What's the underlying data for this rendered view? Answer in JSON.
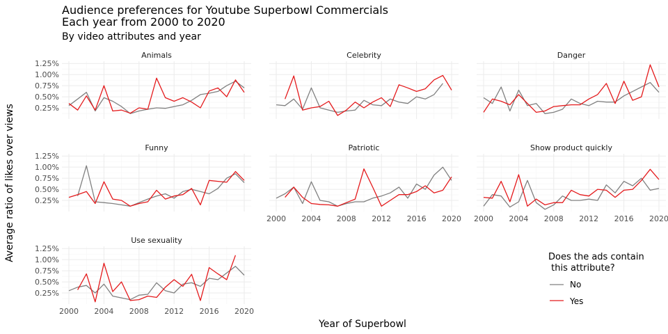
{
  "chart_data": {
    "type": "line",
    "title_line1": "Audience preferences for Youtube Superbowl Commercials",
    "title_line2": "Each year from 2000 to 2020",
    "subtitle": "By video attributes and year",
    "xlabel": "Year of Superbowl",
    "ylabel": "Average ratio of likes over views",
    "xlim": [
      2000,
      2020
    ],
    "ylim": [
      0,
      1.3
    ],
    "x_ticks": [
      2000,
      2004,
      2008,
      2012,
      2016,
      2020
    ],
    "y_ticks": [
      0.25,
      0.5,
      0.75,
      1.0,
      1.25
    ],
    "y_tick_labels": [
      "0.25%",
      "0.50%",
      "0.75%",
      "1.00%",
      "1.25%"
    ],
    "legend": {
      "title_line1": "Does the ads contain",
      "title_line2": " this attribute?",
      "entries": [
        {
          "label": "No",
          "color": "#808080"
        },
        {
          "label": "Yes",
          "color": "#e41a1c"
        }
      ]
    },
    "series_colors": {
      "no": "#808080",
      "yes": "#e41a1c"
    },
    "panels": [
      {
        "name": "Animals",
        "no": [
          [
            2000,
            0.3
          ],
          [
            2001,
            0.45
          ],
          [
            2002,
            0.6
          ],
          [
            2003,
            0.18
          ],
          [
            2004,
            0.48
          ],
          [
            2005,
            0.4
          ],
          [
            2006,
            0.28
          ],
          [
            2007,
            0.12
          ],
          [
            2008,
            0.18
          ],
          [
            2009,
            0.22
          ],
          [
            2010,
            0.25
          ],
          [
            2011,
            0.24
          ],
          [
            2012,
            0.28
          ],
          [
            2013,
            0.32
          ],
          [
            2014,
            0.42
          ],
          [
            2015,
            0.55
          ],
          [
            2016,
            0.58
          ],
          [
            2017,
            0.62
          ],
          [
            2018,
            0.75
          ],
          [
            2019,
            0.85
          ],
          [
            2020,
            0.7
          ]
        ],
        "yes": [
          [
            2000,
            0.35
          ],
          [
            2001,
            0.2
          ],
          [
            2002,
            0.52
          ],
          [
            2003,
            0.2
          ],
          [
            2004,
            0.75
          ],
          [
            2005,
            0.18
          ],
          [
            2006,
            0.2
          ],
          [
            2007,
            0.13
          ],
          [
            2008,
            0.25
          ],
          [
            2009,
            0.22
          ],
          [
            2010,
            0.92
          ],
          [
            2011,
            0.48
          ],
          [
            2012,
            0.4
          ],
          [
            2013,
            0.48
          ],
          [
            2014,
            0.38
          ],
          [
            2015,
            0.25
          ],
          [
            2016,
            0.63
          ],
          [
            2017,
            0.7
          ],
          [
            2018,
            0.5
          ],
          [
            2019,
            0.88
          ],
          [
            2020,
            0.6
          ]
        ]
      },
      {
        "name": "Celebrity",
        "no": [
          [
            2000,
            0.32
          ],
          [
            2001,
            0.3
          ],
          [
            2002,
            0.45
          ],
          [
            2003,
            0.22
          ],
          [
            2004,
            0.7
          ],
          [
            2005,
            0.25
          ],
          [
            2006,
            0.2
          ],
          [
            2007,
            0.15
          ],
          [
            2008,
            0.18
          ],
          [
            2009,
            0.2
          ],
          [
            2010,
            0.42
          ],
          [
            2011,
            0.32
          ],
          [
            2012,
            0.3
          ],
          [
            2013,
            0.45
          ],
          [
            2014,
            0.38
          ],
          [
            2015,
            0.35
          ],
          [
            2016,
            0.5
          ],
          [
            2017,
            0.45
          ],
          [
            2018,
            0.55
          ],
          [
            2019,
            0.8
          ]
        ],
        "yes": [
          [
            2001,
            0.45
          ],
          [
            2002,
            0.97
          ],
          [
            2003,
            0.2
          ],
          [
            2004,
            0.25
          ],
          [
            2005,
            0.28
          ],
          [
            2006,
            0.4
          ],
          [
            2007,
            0.08
          ],
          [
            2008,
            0.2
          ],
          [
            2009,
            0.38
          ],
          [
            2010,
            0.25
          ],
          [
            2011,
            0.38
          ],
          [
            2012,
            0.48
          ],
          [
            2013,
            0.28
          ],
          [
            2014,
            0.77
          ],
          [
            2015,
            0.7
          ],
          [
            2016,
            0.62
          ],
          [
            2017,
            0.68
          ],
          [
            2018,
            0.88
          ],
          [
            2019,
            0.98
          ],
          [
            2020,
            0.65
          ]
        ]
      },
      {
        "name": "Danger",
        "no": [
          [
            2000,
            0.48
          ],
          [
            2001,
            0.35
          ],
          [
            2002,
            0.72
          ],
          [
            2003,
            0.18
          ],
          [
            2004,
            0.65
          ],
          [
            2005,
            0.3
          ],
          [
            2006,
            0.35
          ],
          [
            2007,
            0.12
          ],
          [
            2008,
            0.15
          ],
          [
            2009,
            0.22
          ],
          [
            2010,
            0.45
          ],
          [
            2011,
            0.35
          ],
          [
            2012,
            0.3
          ],
          [
            2013,
            0.4
          ],
          [
            2014,
            0.38
          ],
          [
            2015,
            0.38
          ],
          [
            2016,
            0.52
          ],
          [
            2017,
            0.62
          ],
          [
            2018,
            0.72
          ],
          [
            2019,
            0.82
          ],
          [
            2020,
            0.6
          ]
        ],
        "yes": [
          [
            2000,
            0.15
          ],
          [
            2001,
            0.45
          ],
          [
            2002,
            0.4
          ],
          [
            2003,
            0.32
          ],
          [
            2004,
            0.55
          ],
          [
            2005,
            0.35
          ],
          [
            2006,
            0.15
          ],
          [
            2007,
            0.18
          ],
          [
            2008,
            0.28
          ],
          [
            2009,
            0.3
          ],
          [
            2010,
            0.32
          ],
          [
            2011,
            0.32
          ],
          [
            2012,
            0.45
          ],
          [
            2013,
            0.55
          ],
          [
            2014,
            0.8
          ],
          [
            2015,
            0.35
          ],
          [
            2016,
            0.85
          ],
          [
            2017,
            0.42
          ],
          [
            2018,
            0.5
          ],
          [
            2019,
            1.22
          ],
          [
            2020,
            0.72
          ]
        ]
      },
      {
        "name": "Funny",
        "no": [
          [
            2001,
            0.35
          ],
          [
            2002,
            1.03
          ],
          [
            2003,
            0.22
          ],
          [
            2004,
            0.2
          ],
          [
            2005,
            0.18
          ],
          [
            2006,
            0.15
          ],
          [
            2007,
            0.12
          ],
          [
            2008,
            0.2
          ],
          [
            2009,
            0.28
          ],
          [
            2010,
            0.35
          ],
          [
            2011,
            0.4
          ],
          [
            2012,
            0.3
          ],
          [
            2013,
            0.45
          ],
          [
            2014,
            0.5
          ],
          [
            2015,
            0.45
          ],
          [
            2016,
            0.4
          ],
          [
            2017,
            0.52
          ],
          [
            2018,
            0.75
          ],
          [
            2019,
            0.85
          ],
          [
            2020,
            0.65
          ]
        ],
        "yes": [
          [
            2000,
            0.32
          ],
          [
            2001,
            0.38
          ],
          [
            2002,
            0.45
          ],
          [
            2003,
            0.18
          ],
          [
            2004,
            0.67
          ],
          [
            2005,
            0.28
          ],
          [
            2006,
            0.25
          ],
          [
            2007,
            0.12
          ],
          [
            2008,
            0.18
          ],
          [
            2009,
            0.22
          ],
          [
            2010,
            0.48
          ],
          [
            2011,
            0.28
          ],
          [
            2012,
            0.35
          ],
          [
            2013,
            0.38
          ],
          [
            2014,
            0.52
          ],
          [
            2015,
            0.15
          ],
          [
            2016,
            0.7
          ],
          [
            2017,
            0.68
          ],
          [
            2018,
            0.66
          ],
          [
            2019,
            0.9
          ],
          [
            2020,
            0.7
          ]
        ]
      },
      {
        "name": "Patriotic",
        "no": [
          [
            2000,
            0.3
          ],
          [
            2001,
            0.4
          ],
          [
            2002,
            0.55
          ],
          [
            2003,
            0.18
          ],
          [
            2004,
            0.67
          ],
          [
            2005,
            0.25
          ],
          [
            2006,
            0.22
          ],
          [
            2007,
            0.12
          ],
          [
            2008,
            0.18
          ],
          [
            2009,
            0.22
          ],
          [
            2010,
            0.22
          ],
          [
            2011,
            0.3
          ],
          [
            2012,
            0.35
          ],
          [
            2013,
            0.42
          ],
          [
            2014,
            0.55
          ],
          [
            2015,
            0.3
          ],
          [
            2016,
            0.62
          ],
          [
            2017,
            0.5
          ],
          [
            2018,
            0.82
          ],
          [
            2019,
            1.0
          ],
          [
            2020,
            0.7
          ]
        ],
        "yes": [
          [
            2001,
            0.32
          ],
          [
            2002,
            0.55
          ],
          [
            2003,
            0.32
          ],
          [
            2004,
            0.18
          ],
          [
            2005,
            0.16
          ],
          [
            2006,
            0.15
          ],
          [
            2007,
            0.12
          ],
          [
            2008,
            0.2
          ],
          [
            2009,
            0.28
          ],
          [
            2010,
            0.96
          ],
          [
            2011,
            0.55
          ],
          [
            2012,
            0.12
          ],
          [
            2013,
            0.25
          ],
          [
            2014,
            0.38
          ],
          [
            2015,
            0.38
          ],
          [
            2016,
            0.45
          ],
          [
            2017,
            0.58
          ],
          [
            2018,
            0.42
          ],
          [
            2019,
            0.48
          ],
          [
            2020,
            0.78
          ]
        ]
      },
      {
        "name": "Show product quickly",
        "no": [
          [
            2000,
            0.12
          ],
          [
            2001,
            0.38
          ],
          [
            2002,
            0.35
          ],
          [
            2003,
            0.1
          ],
          [
            2004,
            0.22
          ],
          [
            2005,
            0.7
          ],
          [
            2006,
            0.2
          ],
          [
            2007,
            0.05
          ],
          [
            2008,
            0.15
          ],
          [
            2009,
            0.35
          ],
          [
            2010,
            0.25
          ],
          [
            2011,
            0.25
          ],
          [
            2012,
            0.28
          ],
          [
            2013,
            0.25
          ],
          [
            2014,
            0.6
          ],
          [
            2015,
            0.42
          ],
          [
            2016,
            0.68
          ],
          [
            2017,
            0.58
          ],
          [
            2018,
            0.75
          ],
          [
            2019,
            0.48
          ],
          [
            2020,
            0.52
          ]
        ],
        "yes": [
          [
            2000,
            0.32
          ],
          [
            2001,
            0.3
          ],
          [
            2002,
            0.68
          ],
          [
            2003,
            0.22
          ],
          [
            2004,
            0.83
          ],
          [
            2005,
            0.12
          ],
          [
            2006,
            0.28
          ],
          [
            2007,
            0.15
          ],
          [
            2008,
            0.2
          ],
          [
            2009,
            0.2
          ],
          [
            2010,
            0.48
          ],
          [
            2011,
            0.38
          ],
          [
            2012,
            0.35
          ],
          [
            2013,
            0.5
          ],
          [
            2014,
            0.48
          ],
          [
            2015,
            0.32
          ],
          [
            2016,
            0.48
          ],
          [
            2017,
            0.5
          ],
          [
            2018,
            0.7
          ],
          [
            2019,
            0.95
          ],
          [
            2020,
            0.72
          ]
        ]
      },
      {
        "name": "Use sexuality",
        "no": [
          [
            2000,
            0.3
          ],
          [
            2001,
            0.38
          ],
          [
            2002,
            0.42
          ],
          [
            2003,
            0.25
          ],
          [
            2004,
            0.45
          ],
          [
            2005,
            0.18
          ],
          [
            2006,
            0.14
          ],
          [
            2007,
            0.1
          ],
          [
            2008,
            0.2
          ],
          [
            2009,
            0.22
          ],
          [
            2010,
            0.48
          ],
          [
            2011,
            0.3
          ],
          [
            2012,
            0.25
          ],
          [
            2013,
            0.45
          ],
          [
            2014,
            0.48
          ],
          [
            2015,
            0.4
          ],
          [
            2016,
            0.58
          ],
          [
            2017,
            0.55
          ],
          [
            2018,
            0.7
          ],
          [
            2019,
            0.85
          ],
          [
            2020,
            0.65
          ]
        ],
        "yes": [
          [
            2001,
            0.32
          ],
          [
            2002,
            0.68
          ],
          [
            2003,
            0.05
          ],
          [
            2004,
            0.92
          ],
          [
            2005,
            0.28
          ],
          [
            2006,
            0.5
          ],
          [
            2007,
            0.08
          ],
          [
            2008,
            0.1
          ],
          [
            2009,
            0.18
          ],
          [
            2010,
            0.15
          ],
          [
            2011,
            0.38
          ],
          [
            2012,
            0.55
          ],
          [
            2013,
            0.4
          ],
          [
            2014,
            0.67
          ],
          [
            2015,
            0.08
          ],
          [
            2016,
            0.82
          ],
          [
            2017,
            0.68
          ],
          [
            2018,
            0.55
          ],
          [
            2019,
            1.1
          ]
        ]
      }
    ]
  }
}
